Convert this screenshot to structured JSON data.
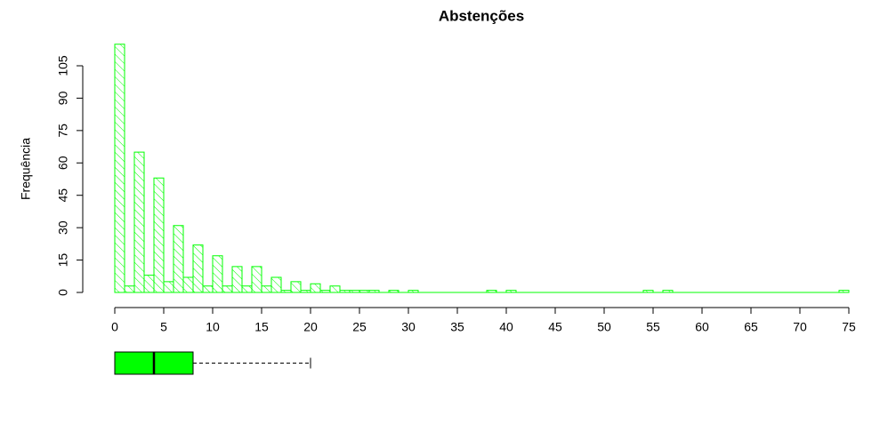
{
  "chart_data": {
    "type": "histogram",
    "title": "Abstenções",
    "y_label": "Frequência",
    "color": "#00ff00",
    "hatch": true,
    "bins": [
      0,
      1,
      2,
      3,
      4,
      5,
      6,
      7,
      8,
      9,
      10,
      11,
      12,
      13,
      14,
      15,
      16,
      17,
      18,
      19,
      20,
      21,
      22,
      23,
      24,
      25,
      26,
      27,
      28,
      29,
      30,
      31,
      32,
      33,
      34,
      35,
      36,
      37,
      38,
      39,
      40,
      41,
      42,
      43,
      44,
      45,
      46,
      47,
      48,
      49,
      50,
      51,
      52,
      53,
      54,
      55,
      56,
      57,
      58,
      59,
      60,
      61,
      62,
      63,
      64,
      65,
      66,
      67,
      68,
      69,
      70,
      71,
      72,
      73,
      74,
      75
    ],
    "counts": [
      115,
      3,
      65,
      8,
      53,
      5,
      31,
      7,
      22,
      3,
      17,
      3,
      12,
      3,
      12,
      3,
      7,
      1,
      5,
      1,
      4,
      1,
      3,
      1,
      1,
      1,
      1,
      0,
      1,
      0,
      1,
      0,
      0,
      0,
      0,
      0,
      0,
      0,
      1,
      0,
      1,
      0,
      0,
      0,
      0,
      0,
      0,
      0,
      0,
      0,
      0,
      0,
      0,
      0,
      1,
      0,
      1,
      0,
      0,
      0,
      0,
      0,
      0,
      0,
      0,
      0,
      0,
      0,
      0,
      0,
      0,
      0,
      0,
      0,
      1
    ],
    "xlim": [
      0,
      75
    ],
    "xticks": [
      0,
      5,
      10,
      15,
      20,
      25,
      30,
      35,
      40,
      45,
      50,
      55,
      60,
      65,
      70,
      75
    ],
    "ylim": [
      0,
      120
    ],
    "yticks": [
      0,
      15,
      30,
      45,
      60,
      75,
      90,
      105
    ],
    "boxplot": {
      "whisker_low": 0,
      "q1": 0,
      "median": 4,
      "q3": 8,
      "whisker_high": 20,
      "color": "#00ff00"
    }
  }
}
